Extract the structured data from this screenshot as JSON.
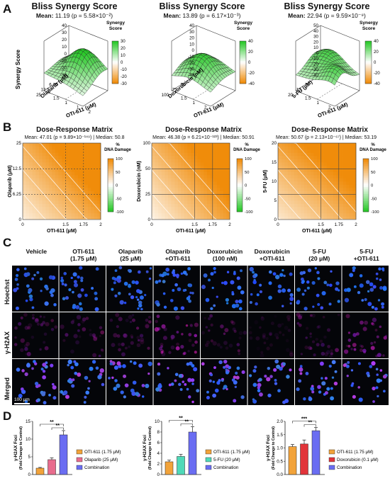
{
  "panels": {
    "A": "A",
    "B": "B",
    "C": "C",
    "D": "D"
  },
  "panelA": [
    {
      "title": "Bliss Synergy Score",
      "mean_label": "Mean:",
      "mean_value": "11.19 (p = 5.58×10⁻²)",
      "drug_label": "Olaparib (μM)",
      "drug_ticks": [
        "25",
        "12.5",
        "6.25"
      ],
      "oti_label": "OTI-611 (μM)",
      "oti_ticks": [
        "1.5",
        "1",
        "1",
        "2"
      ],
      "z_ticks": [
        "40",
        "30",
        "20",
        "10",
        "0",
        "-10",
        "-20",
        "-30"
      ],
      "legend_title": "Synergy Score",
      "legend_ticks": [
        "30",
        "20",
        "10",
        "0",
        "-10",
        "-20",
        "-30"
      ],
      "zlabel": "Synergy Score"
    },
    {
      "title": "Bliss Synergy Score",
      "mean_label": "Mean:",
      "mean_value": "13.89 (p = 6.17×10⁻³)",
      "drug_label": "Doxorubicin (nM)",
      "drug_ticks": [
        "100",
        "75",
        "50"
      ],
      "oti_label": "OTI-611 (μM)",
      "oti_ticks": [
        "1.5",
        "1",
        "2"
      ],
      "z_ticks": [
        "40",
        "30",
        "20",
        "10",
        "0",
        "-10",
        "-20",
        "-30",
        "-40"
      ],
      "legend_title": "Synergy Score",
      "legend_ticks": [
        "40",
        "20",
        "0",
        "-20",
        "-40"
      ],
      "zlabel": ""
    },
    {
      "title": "Bliss Synergy Score",
      "mean_label": "Mean:",
      "mean_value": "22.94 (p = 9.59×10⁻⁹)",
      "drug_label": "5-FU (μM)",
      "drug_ticks": [
        "20",
        "15",
        "10"
      ],
      "oti_label": "OTI-611 (μM)",
      "oti_ticks": [
        "1.5",
        "1",
        "2"
      ],
      "z_ticks": [
        "50",
        "40",
        "30",
        "20",
        "10",
        "0",
        "-10",
        "-20",
        "-30",
        "-40"
      ],
      "legend_title": "Synergy Score",
      "legend_ticks": [
        "40",
        "20",
        "0",
        "-20",
        "-40"
      ],
      "zlabel": ""
    }
  ],
  "panelB": [
    {
      "title": "Dose-Response Matrix",
      "mean_text": "Mean: 47.01 (p = 9.89×10⁻¹⁴⁹) | Median: 50.8",
      "ylabel": "Olaparib (μM)",
      "yticks": [
        "25",
        "12.5",
        "6.25",
        "0"
      ],
      "xlabel": "OTI-611 (μM)",
      "xticks": [
        "0",
        "1.5",
        "1.75",
        "2"
      ],
      "cb_title": "% DNA Damage",
      "cb_ticks": [
        "100",
        "50",
        "0",
        "-50",
        "-100"
      ]
    },
    {
      "title": "Dose-Response Matrix",
      "mean_text": "Mean: 46.38 (p = 6.21×10⁻¹²³) | Median: 50.91",
      "ylabel": "Doxorubicin (nM)",
      "yticks": [
        "100",
        "50",
        "25",
        "0"
      ],
      "xlabel": "OTI-611 (μM)",
      "xticks": [
        "0",
        "1.5",
        "1.75",
        "2"
      ],
      "cb_title": "% DNA Damage",
      "cb_ticks": [
        "100",
        "50",
        "0",
        "-50",
        "-100"
      ]
    },
    {
      "title": "Dose-Response Matrix",
      "mean_text": "Mean: 50.67 (p = 2.13×10⁻⁶⁷) | Median: 53.19",
      "ylabel": "5-FU (μM)",
      "yticks": [
        "20",
        "15",
        "10",
        "5",
        "0"
      ],
      "xlabel": "OTI-611 (μM)",
      "xticks": [
        "0",
        "1.5",
        "1.75",
        "2"
      ],
      "cb_title": "% DNA Damage",
      "cb_ticks": [
        "100",
        "50",
        "0",
        "-50",
        "-100"
      ]
    }
  ],
  "panelC": {
    "columns": [
      {
        "l1": "Vehicle",
        "l2": ""
      },
      {
        "l1": "OTI-611",
        "l2": "(1.75 μM)"
      },
      {
        "l1": "Olaparib",
        "l2": "(25 μM)"
      },
      {
        "l1": "Olaparib",
        "l2": "+OTI-611"
      },
      {
        "l1": "Doxorubicin",
        "l2": "(100 nM)"
      },
      {
        "l1": "Doxorubicin",
        "l2": "+OTI-611"
      },
      {
        "l1": "5-FU",
        "l2": "(20 μM)"
      },
      {
        "l1": "5-FU",
        "l2": "+OTI-611"
      }
    ],
    "rows": [
      "Hoechst",
      "γ-H2AX",
      "Merged"
    ],
    "scalebar": "100 μm"
  },
  "panelD": [
    {
      "ylabel": "γ-H2AX Foci",
      "ylabel2": "(Fold Change to Control)",
      "yticks": [
        "15",
        "10",
        "5",
        "0"
      ],
      "sig_top": "**",
      "sig_inner": "**",
      "legend": [
        "OTI-611 (1.75 μM)",
        "Olaparib (25 μM)",
        "Combination"
      ]
    },
    {
      "ylabel": "γ-H2AX Foci",
      "ylabel2": "(Fold Change to Control)",
      "yticks": [
        "10",
        "8",
        "6",
        "4",
        "2",
        "0"
      ],
      "sig_top": "**",
      "sig_inner": "**",
      "legend": [
        "OTI-611 (1.75 μM)",
        "5-FU (20 μM)",
        "Combination"
      ]
    },
    {
      "ylabel": "γ-H2AX Foci",
      "ylabel2": "(Fold Change to Control)",
      "yticks": [
        "2.0",
        "1.5",
        "1.0",
        "0.5",
        "0.0"
      ],
      "sig_top": "***",
      "sig_inner": "**",
      "legend": [
        "OTI-611 (1.75 μM)",
        "Doxorubicin (0.1 μM)",
        "Combination"
      ]
    }
  ],
  "chart_data": [
    {
      "type": "bar",
      "categories": [
        "OTI-611 (1.75 μM)",
        "Olaparib (25 μM)",
        "Combination"
      ],
      "values": [
        1.8,
        4.2,
        11.2
      ],
      "errors": [
        0.2,
        0.5,
        1.2
      ],
      "ylim": [
        0,
        15
      ],
      "ylabel": "γ-H2AX Foci (Fold Change to Control)",
      "colors": [
        "#f2a33a",
        "#e86c8d",
        "#6a6df2"
      ]
    },
    {
      "type": "bar",
      "categories": [
        "OTI-611 (1.75 μM)",
        "5-FU (20 μM)",
        "Combination"
      ],
      "values": [
        2.4,
        3.4,
        8.0
      ],
      "errors": [
        0.3,
        0.4,
        1.0
      ],
      "ylim": [
        0,
        10
      ],
      "ylabel": "γ-H2AX Foci (Fold Change to Control)",
      "colors": [
        "#f2a33a",
        "#4fd9b8",
        "#6a6df2"
      ]
    },
    {
      "type": "bar",
      "categories": [
        "OTI-611 (1.75 μM)",
        "Doxorubicin (0.1 μM)",
        "Combination"
      ],
      "values": [
        1.05,
        1.15,
        1.65
      ],
      "errors": [
        0.08,
        0.15,
        0.12
      ],
      "ylim": [
        0,
        2.0
      ],
      "ylabel": "γ-H2AX Foci (Fold Change to Control)",
      "colors": [
        "#f2a33a",
        "#e2343a",
        "#6a6df2"
      ]
    }
  ]
}
